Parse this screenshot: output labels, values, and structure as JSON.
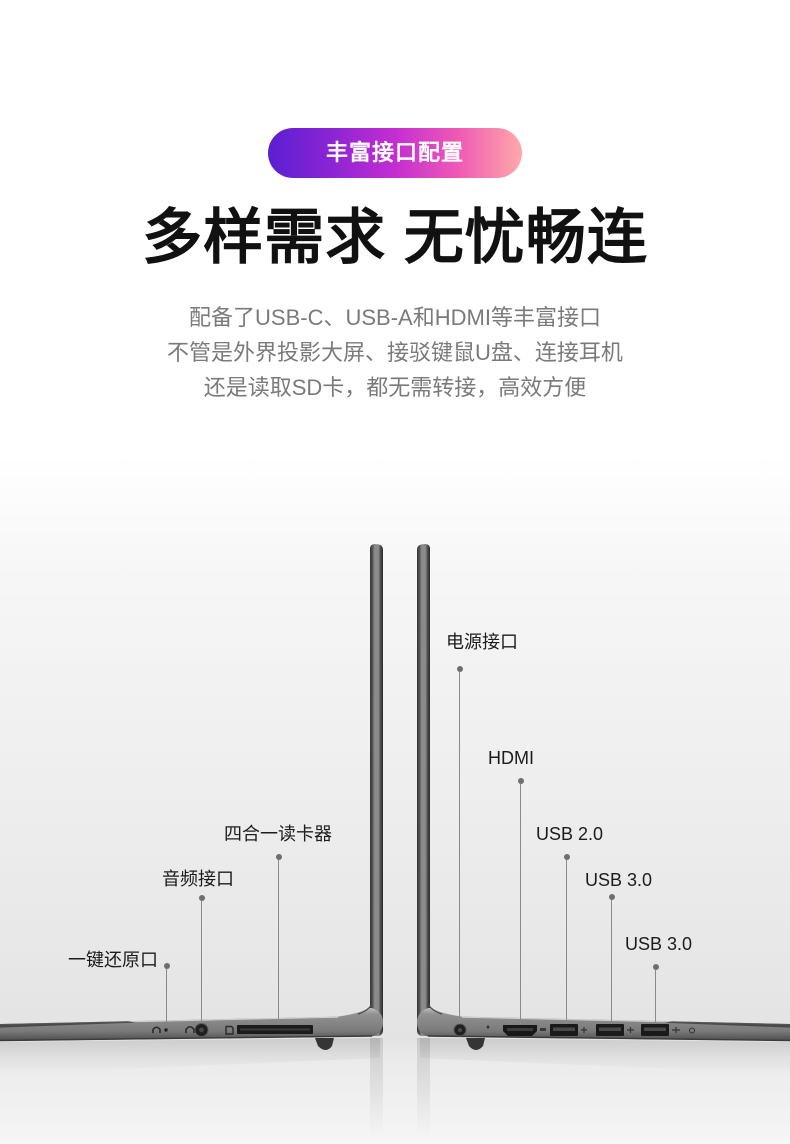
{
  "badge": {
    "label": "丰富接口配置"
  },
  "headline": "多样需求 无忧畅连",
  "description": [
    "配备了USB-C、USB-A和HDMI等丰富接口",
    "不管是外界投影大屏、接驳键鼠U盘、连接耳机",
    "还是读取SD卡，都无需转接，高效方便"
  ],
  "left_view": {
    "callouts": [
      {
        "label": "一键还原口"
      },
      {
        "label": "音频接口"
      },
      {
        "label": "四合一读卡器"
      }
    ],
    "port_icons": [
      "recovery-icon",
      "headphone-icon",
      "sd-card-icon"
    ]
  },
  "right_view": {
    "callouts": [
      {
        "label": "电源接口"
      },
      {
        "label": "HDMI"
      },
      {
        "label": "USB 2.0"
      },
      {
        "label": "USB 3.0"
      },
      {
        "label": "USB 3.0"
      }
    ],
    "port_icons": [
      "hdmi-icon",
      "usb-icon",
      "usb-icon",
      "usb-ss-icon"
    ]
  },
  "colors": {
    "badge_gradient": [
      "#5a1fd1",
      "#8c24d4",
      "#c42ed0",
      "#ef5ab5",
      "#ffa9a9"
    ],
    "badge_text": "#ffffff",
    "headline": "#111111",
    "description": "#7a7a7a",
    "callout_label": "#1c1c1c",
    "leader": "#8a8a8a",
    "leader_dot": "#6e6e6e",
    "laptop_body": "#7e7e7e"
  }
}
